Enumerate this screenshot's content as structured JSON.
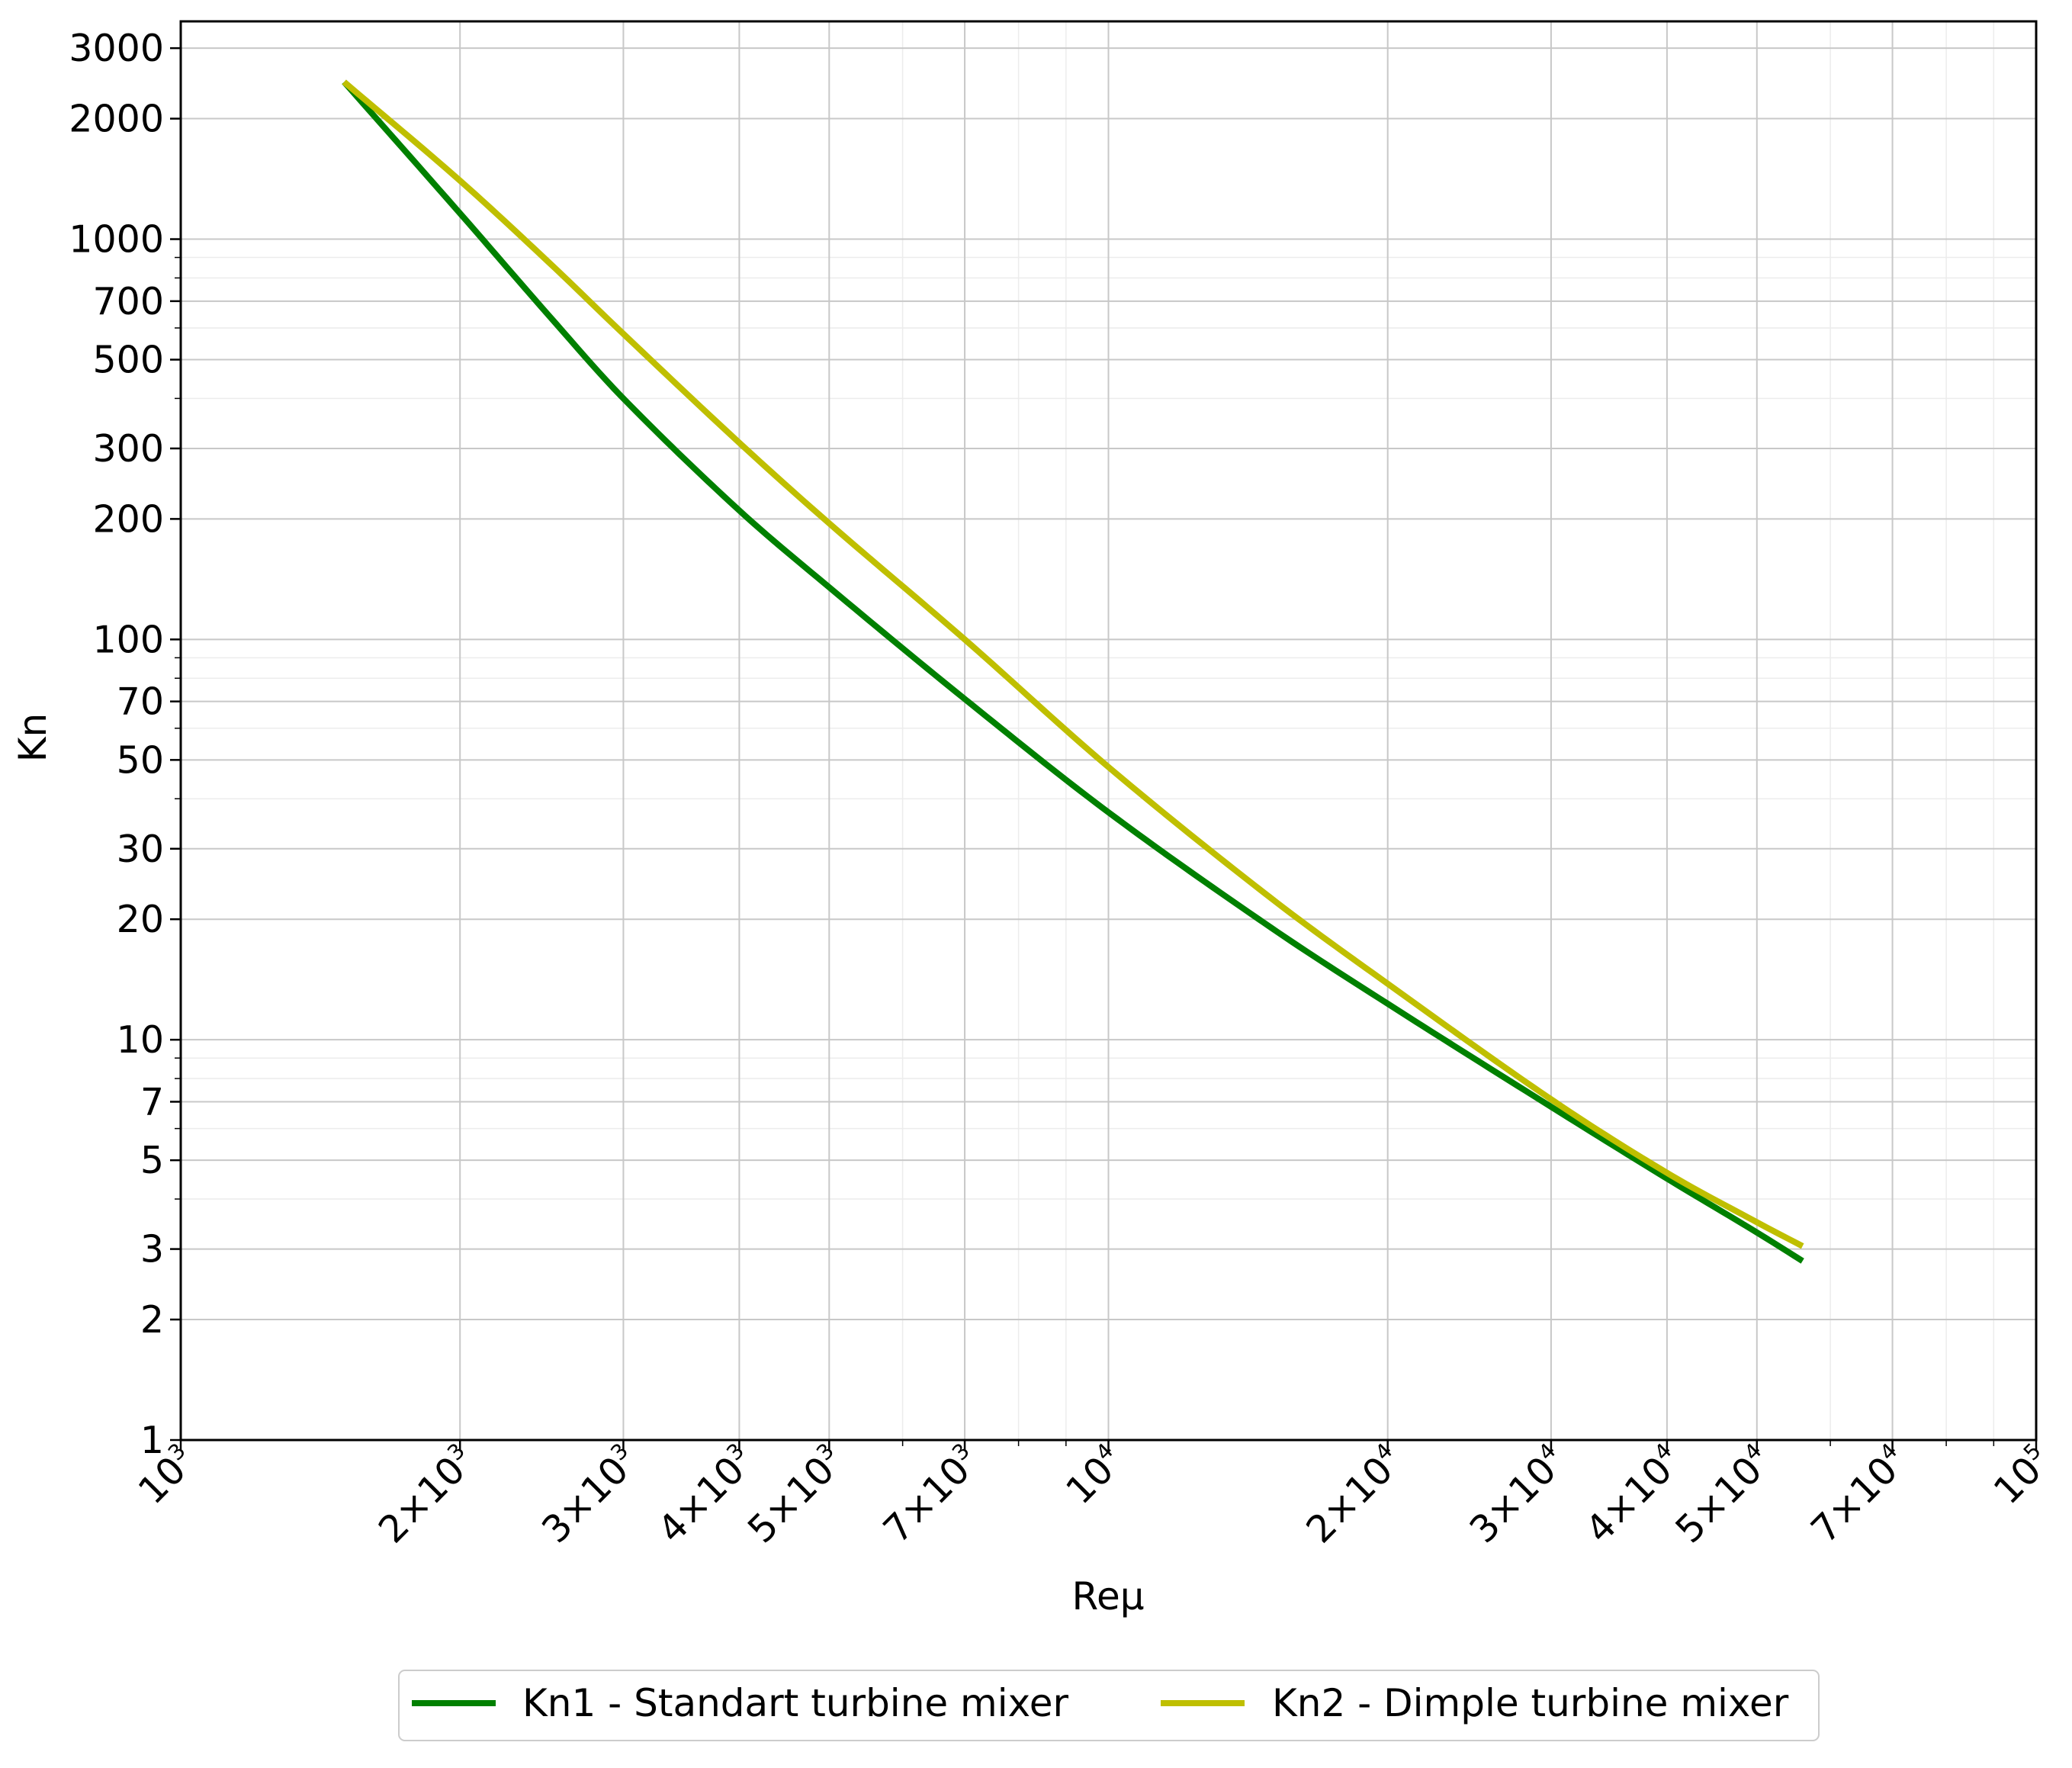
{
  "chart_data": {
    "type": "line",
    "xscale": "log",
    "yscale": "log",
    "xlim": [
      1000,
      100000
    ],
    "ylim": [
      1,
      3500
    ],
    "xlabel": "Reμ",
    "ylabel": "Kn",
    "grid": true,
    "legend_position": "bottom-center",
    "x_ticks": [
      {
        "value": 1000,
        "mant": "10",
        "exp": "3"
      },
      {
        "value": 2000,
        "mant": "2×10",
        "exp": "3"
      },
      {
        "value": 3000,
        "mant": "3×10",
        "exp": "3"
      },
      {
        "value": 4000,
        "mant": "4×10",
        "exp": "3"
      },
      {
        "value": 5000,
        "mant": "5×10",
        "exp": "3"
      },
      {
        "value": 7000,
        "mant": "7×10",
        "exp": "3"
      },
      {
        "value": 10000,
        "mant": "10",
        "exp": "4"
      },
      {
        "value": 20000,
        "mant": "2×10",
        "exp": "4"
      },
      {
        "value": 30000,
        "mant": "3×10",
        "exp": "4"
      },
      {
        "value": 40000,
        "mant": "4×10",
        "exp": "4"
      },
      {
        "value": 50000,
        "mant": "5×10",
        "exp": "4"
      },
      {
        "value": 70000,
        "mant": "7×10",
        "exp": "4"
      },
      {
        "value": 100000,
        "mant": "10",
        "exp": "5"
      }
    ],
    "y_ticks": [
      {
        "value": 1,
        "label": "1"
      },
      {
        "value": 2,
        "label": "2"
      },
      {
        "value": 3,
        "label": "3"
      },
      {
        "value": 5,
        "label": "5"
      },
      {
        "value": 7,
        "label": "7"
      },
      {
        "value": 10,
        "label": "10"
      },
      {
        "value": 20,
        "label": "20"
      },
      {
        "value": 30,
        "label": "30"
      },
      {
        "value": 50,
        "label": "50"
      },
      {
        "value": 70,
        "label": "70"
      },
      {
        "value": 100,
        "label": "100"
      },
      {
        "value": 200,
        "label": "200"
      },
      {
        "value": 300,
        "label": "300"
      },
      {
        "value": 500,
        "label": "500"
      },
      {
        "value": 700,
        "label": "700"
      },
      {
        "value": 1000,
        "label": "1000"
      },
      {
        "value": 2000,
        "label": "2000"
      },
      {
        "value": 3000,
        "label": "3000"
      }
    ],
    "series": [
      {
        "name": "Kn1 - Standart turbine mixer",
        "color": "#008000",
        "x": [
          1500,
          2000,
          2500,
          3000,
          4000,
          5000,
          7000,
          10000,
          15000,
          20000,
          30000,
          40000,
          50000,
          56000
        ],
        "y": [
          2470,
          1160,
          640,
          400,
          210,
          135,
          71,
          37,
          19,
          12.3,
          6.8,
          4.5,
          3.3,
          2.8
        ]
      },
      {
        "name": "Kn2 - Dimple turbine mixer",
        "color": "#bfbf00",
        "x": [
          1500,
          2000,
          2500,
          3000,
          4000,
          5000,
          7000,
          10000,
          15000,
          20000,
          30000,
          40000,
          50000,
          56000
        ],
        "y": [
          2470,
          1400,
          870,
          580,
          310,
          195,
          100,
          48,
          22.5,
          13.8,
          7.1,
          4.65,
          3.5,
          3.05
        ]
      }
    ]
  }
}
